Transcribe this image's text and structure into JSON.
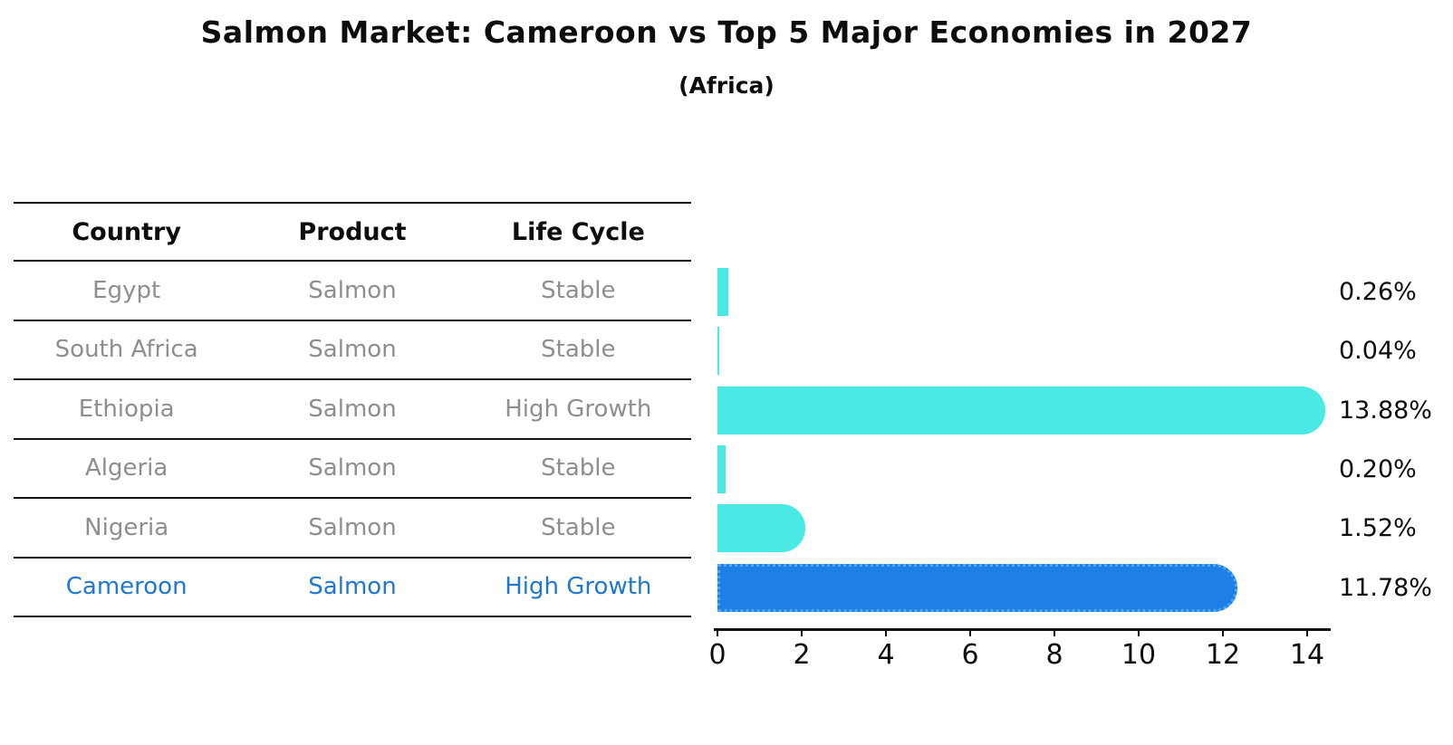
{
  "title": "Salmon Market: Cameroon vs Top 5 Major Economies in 2027",
  "subtitle": "(Africa)",
  "table": {
    "headers": [
      "Country",
      "Product",
      "Life Cycle"
    ],
    "rows": [
      {
        "country": "Egypt",
        "product": "Salmon",
        "life_cycle": "Stable",
        "highlight": false
      },
      {
        "country": "South Africa",
        "product": "Salmon",
        "life_cycle": "Stable",
        "highlight": false
      },
      {
        "country": "Ethiopia",
        "product": "Salmon",
        "life_cycle": "High Growth",
        "highlight": false
      },
      {
        "country": "Algeria",
        "product": "Salmon",
        "life_cycle": "Stable",
        "highlight": false
      },
      {
        "country": "Nigeria",
        "product": "Salmon",
        "life_cycle": "Stable",
        "highlight": false
      },
      {
        "country": "Cameroon",
        "product": "Salmon",
        "life_cycle": "High Growth",
        "highlight": true
      }
    ]
  },
  "chart_data": {
    "type": "bar",
    "orientation": "horizontal",
    "title": "Salmon Market: Cameroon vs Top 5 Major Economies in 2027",
    "subtitle": "(Africa)",
    "categories": [
      "Egypt",
      "South Africa",
      "Ethiopia",
      "Algeria",
      "Nigeria",
      "Cameroon"
    ],
    "values": [
      0.26,
      0.04,
      13.88,
      0.2,
      1.52,
      11.78
    ],
    "value_labels": [
      "0.26%",
      "0.04%",
      "13.88%",
      "0.20%",
      "1.52%",
      "11.78%"
    ],
    "highlight_index": 5,
    "x_ticks": [
      0,
      2,
      4,
      6,
      8,
      10,
      12,
      14
    ],
    "xlim": [
      0,
      14.5
    ],
    "grid": false,
    "legend": false
  },
  "colors": {
    "bar": "#4AE9E3",
    "highlight_bar": "#1E7FE6",
    "highlight_border": "#4FA9F0",
    "highlight_text": "#1F77D4",
    "row_text": "#8E8E8E",
    "header_text": "#0D0D0D",
    "axis": "#111111",
    "label_text": "#0D0D0D"
  }
}
